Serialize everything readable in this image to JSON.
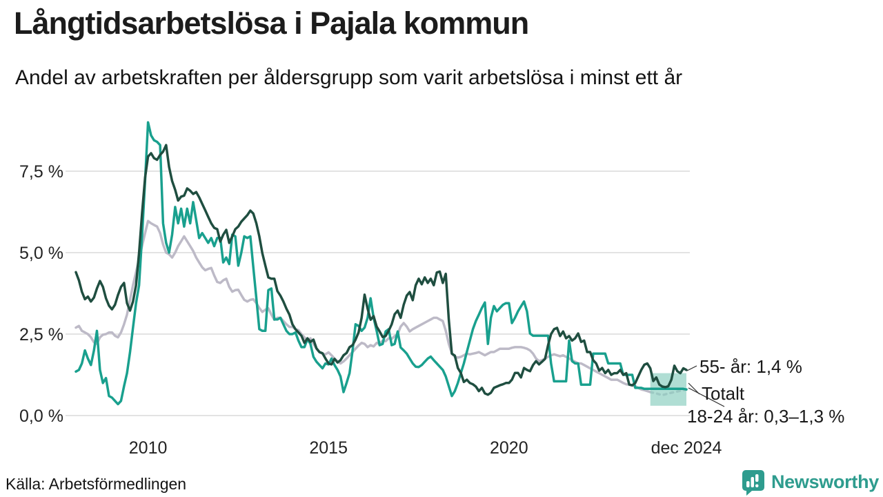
{
  "header": {
    "title": "Långtidsarbetslösa i Pajala kommun",
    "subtitle": "Andel av arbetskraften per åldersgrupp som varit arbetslösa i minst ett år"
  },
  "footer": {
    "source": "Källa: Arbetsförmedlingen",
    "brand": "Newsworthy"
  },
  "colors": {
    "age55": "#1f4e40",
    "youth": "#19a08e",
    "total": "#bdbac7",
    "band": "#8fd0c2",
    "grid": "#dadada",
    "leader": "#2b2b2b",
    "brand": "#2e9c8e"
  },
  "chart_data": {
    "type": "line",
    "unit": "%",
    "frequency": "monthly",
    "x_start": "2008-01",
    "x_end": "2024-12",
    "ylim": [
      0,
      9.3
    ],
    "grid": "horizontal",
    "y_ticks": [
      {
        "label": "0,0 %",
        "value": 0
      },
      {
        "label": "2,5 %",
        "value": 2.5
      },
      {
        "label": "5,0 %",
        "value": 5
      },
      {
        "label": "7,5 %",
        "value": 7.5
      }
    ],
    "x_ticks": [
      {
        "label": "2010",
        "month_index": 24
      },
      {
        "label": "2015",
        "month_index": 84
      },
      {
        "label": "2020",
        "month_index": 144
      },
      {
        "label": "dec 2024",
        "month_index": 203
      }
    ],
    "series": [
      {
        "name": "Totalt",
        "color_key": "total",
        "dashed_from_index": 191,
        "values": [
          2.7,
          2.75,
          2.6,
          2.55,
          2.5,
          2.4,
          2.25,
          2.2,
          2.4,
          2.48,
          2.5,
          2.55,
          2.55,
          2.45,
          2.4,
          2.55,
          2.8,
          3.1,
          3.55,
          4.0,
          4.4,
          4.8,
          5.2,
          5.6,
          5.97,
          5.9,
          5.85,
          5.8,
          5.6,
          5.25,
          5.0,
          4.95,
          4.85,
          5.0,
          5.2,
          5.35,
          5.5,
          5.35,
          5.2,
          5.05,
          4.85,
          4.7,
          4.55,
          4.46,
          4.5,
          4.53,
          4.3,
          4.1,
          4.07,
          4.15,
          4.2,
          3.95,
          3.8,
          3.85,
          3.86,
          3.7,
          3.55,
          3.5,
          3.55,
          3.57,
          3.45,
          3.3,
          3.18,
          3.25,
          3.29,
          3.1,
          2.94,
          3.0,
          3.0,
          2.9,
          2.8,
          2.72,
          2.72,
          2.65,
          2.62,
          2.5,
          2.4,
          2.3,
          2.37,
          2.2,
          2.05,
          1.94,
          1.9,
          1.88,
          1.94,
          1.85,
          1.75,
          1.66,
          1.6,
          1.66,
          1.75,
          1.85,
          1.95,
          2.05,
          2.15,
          2.23,
          2.2,
          2.1,
          2.16,
          2.12,
          2.23,
          2.2,
          2.3,
          2.28,
          2.37,
          2.35,
          2.44,
          2.5,
          2.73,
          2.84,
          2.73,
          2.58,
          2.65,
          2.7,
          2.75,
          2.8,
          2.85,
          2.9,
          2.95,
          3.0,
          3.0,
          2.95,
          2.9,
          2.6,
          2.2,
          1.9,
          1.8,
          1.78,
          1.8,
          1.85,
          1.9,
          1.88,
          1.9,
          1.92,
          1.95,
          1.9,
          1.85,
          1.9,
          1.95,
          1.95,
          2.0,
          2.05,
          2.05,
          2.05,
          2.05,
          2.08,
          2.1,
          2.1,
          2.1,
          2.08,
          2.05,
          2.0,
          1.9,
          1.75,
          1.67,
          1.7,
          1.75,
          1.8,
          1.85,
          1.88,
          1.85,
          1.82,
          1.85,
          1.8,
          1.75,
          1.7,
          1.65,
          1.6,
          1.6,
          1.55,
          1.5,
          1.45,
          1.4,
          1.35,
          1.3,
          1.25,
          1.2,
          1.15,
          1.1,
          1.1,
          1.1,
          1.05,
          1.0,
          0.96,
          0.95,
          0.92,
          0.9,
          0.85,
          0.8,
          0.78,
          0.75,
          0.72,
          0.7,
          0.68,
          0.65,
          0.63,
          0.65,
          0.68,
          0.7,
          0.72,
          0.74,
          0.76,
          0.78,
          0.8
        ]
      },
      {
        "name": "18-24 år",
        "color_key": "youth",
        "values": [
          1.35,
          1.4,
          1.6,
          2.0,
          1.75,
          1.55,
          2.0,
          2.6,
          1.4,
          1.0,
          1.15,
          0.6,
          0.55,
          0.45,
          0.35,
          0.45,
          0.9,
          1.3,
          1.95,
          2.7,
          3.45,
          4.0,
          5.5,
          7.2,
          9.0,
          8.6,
          8.45,
          8.4,
          8.3,
          5.9,
          5.3,
          5.0,
          5.55,
          6.4,
          5.9,
          6.35,
          5.8,
          6.35,
          5.9,
          6.55,
          6.0,
          5.45,
          5.6,
          5.45,
          5.3,
          5.45,
          5.2,
          5.45,
          5.45,
          4.7,
          4.85,
          4.65,
          5.55,
          5.5,
          4.6,
          5.0,
          5.5,
          5.45,
          5.5,
          4.55,
          3.6,
          2.65,
          2.6,
          2.6,
          3.85,
          3.9,
          2.95,
          2.95,
          3.0,
          2.8,
          2.6,
          2.5,
          2.5,
          2.55,
          2.3,
          2.1,
          2.1,
          2.35,
          2.2,
          1.8,
          1.65,
          1.55,
          1.45,
          1.6,
          1.57,
          1.75,
          1.55,
          1.4,
          1.2,
          0.72,
          1.0,
          1.3,
          2.0,
          2.8,
          2.75,
          2.6,
          2.7,
          3.0,
          3.6,
          3.0,
          2.6,
          2.16,
          2.2,
          2.58,
          2.65,
          2.16,
          2.2,
          2.58,
          2.09,
          2.0,
          1.9,
          1.75,
          1.6,
          1.5,
          1.49,
          1.55,
          1.65,
          1.75,
          1.81,
          1.7,
          1.6,
          1.5,
          1.4,
          1.2,
          0.9,
          0.6,
          0.75,
          1.0,
          1.3,
          1.6,
          1.95,
          2.3,
          2.65,
          2.9,
          3.1,
          3.3,
          3.47,
          2.2,
          3.0,
          3.36,
          3.2,
          3.3,
          3.4,
          3.45,
          3.45,
          2.84,
          3.0,
          3.2,
          3.35,
          3.5,
          3.2,
          2.52,
          2.45,
          2.45,
          2.45,
          2.45,
          2.45,
          2.45,
          1.6,
          1.05,
          1.05,
          1.05,
          1.05,
          1.05,
          2.3,
          1.67,
          1.6,
          1.6,
          0.95,
          0.95,
          0.95,
          0.95,
          1.9,
          1.9,
          1.9,
          1.9,
          1.9,
          1.6,
          1.6,
          1.6,
          1.6,
          1.6,
          1.25,
          1.25,
          1.25,
          1.25,
          0.85,
          0.85,
          0.85,
          0.82,
          0.82,
          0.82,
          0.82,
          0.82,
          0.82,
          0.82,
          0.82,
          0.82,
          0.82,
          0.82,
          0.82,
          0.82,
          0.82,
          0.8
        ]
      },
      {
        "name": "55- år",
        "color_key": "age55",
        "values": [
          4.4,
          4.15,
          3.8,
          3.57,
          3.65,
          3.5,
          3.62,
          3.9,
          4.13,
          3.95,
          3.6,
          3.37,
          3.26,
          3.4,
          3.7,
          3.95,
          4.07,
          3.45,
          3.22,
          3.5,
          4.0,
          5.0,
          6.2,
          7.3,
          7.95,
          8.05,
          7.9,
          7.85,
          8.0,
          8.1,
          8.3,
          7.63,
          7.2,
          6.93,
          6.6,
          6.72,
          6.75,
          6.97,
          6.9,
          6.8,
          6.86,
          6.7,
          6.5,
          6.3,
          6.1,
          5.9,
          5.76,
          5.72,
          5.34,
          5.55,
          5.7,
          5.3,
          5.5,
          5.72,
          5.8,
          5.95,
          6.05,
          6.15,
          6.29,
          6.2,
          5.9,
          5.5,
          4.98,
          4.6,
          4.24,
          4.2,
          4.2,
          3.82,
          3.68,
          3.5,
          3.28,
          3.1,
          2.8,
          2.65,
          2.55,
          2.45,
          2.23,
          2.37,
          2.26,
          2.33,
          2.06,
          1.95,
          1.91,
          1.75,
          1.6,
          1.57,
          1.74,
          1.63,
          1.7,
          1.85,
          1.92,
          2.1,
          2.16,
          2.33,
          2.55,
          3.0,
          3.71,
          3.28,
          2.94,
          3.05,
          2.73,
          2.58,
          2.41,
          2.44,
          2.6,
          2.8,
          3.11,
          3.22,
          3.0,
          3.4,
          3.68,
          3.79,
          3.54,
          4.0,
          4.2,
          4.03,
          4.24,
          4.07,
          4.2,
          4.0,
          4.39,
          4.42,
          4.07,
          4.35,
          2.94,
          1.9,
          1.84,
          1.46,
          1.31,
          1.03,
          1.1,
          1.0,
          0.96,
          0.89,
          0.75,
          0.85,
          0.68,
          0.64,
          0.7,
          0.85,
          0.89,
          0.93,
          0.96,
          1.0,
          1.0,
          1.1,
          1.31,
          1.31,
          1.17,
          1.46,
          1.4,
          1.36,
          1.55,
          1.67,
          1.57,
          1.65,
          1.74,
          2.16,
          2.5,
          2.65,
          2.69,
          2.44,
          2.58,
          2.37,
          2.44,
          2.3,
          2.37,
          2.52,
          2.26,
          2.3,
          1.95,
          1.95,
          1.7,
          1.6,
          1.38,
          1.46,
          1.3,
          1.4,
          1.25,
          1.3,
          1.3,
          1.4,
          1.25,
          1.3,
          0.95,
          0.93,
          1.0,
          1.2,
          1.4,
          1.56,
          1.6,
          1.45,
          1.06,
          1.17,
          0.95,
          0.89,
          0.87,
          0.9,
          1.1,
          1.53,
          1.36,
          1.3,
          1.45,
          1.4
        ]
      }
    ],
    "uncertainty_band": {
      "series": "18-24 år",
      "from_month_index": 191,
      "low": 0.3,
      "high": 1.3
    },
    "annotations": [
      {
        "text": "55- år: 1,4 %",
        "series": "55- år"
      },
      {
        "text": "Totalt",
        "series": "Totalt"
      },
      {
        "text": "18-24 år: 0,3–1,3 %",
        "series": "18-24 år"
      }
    ]
  }
}
